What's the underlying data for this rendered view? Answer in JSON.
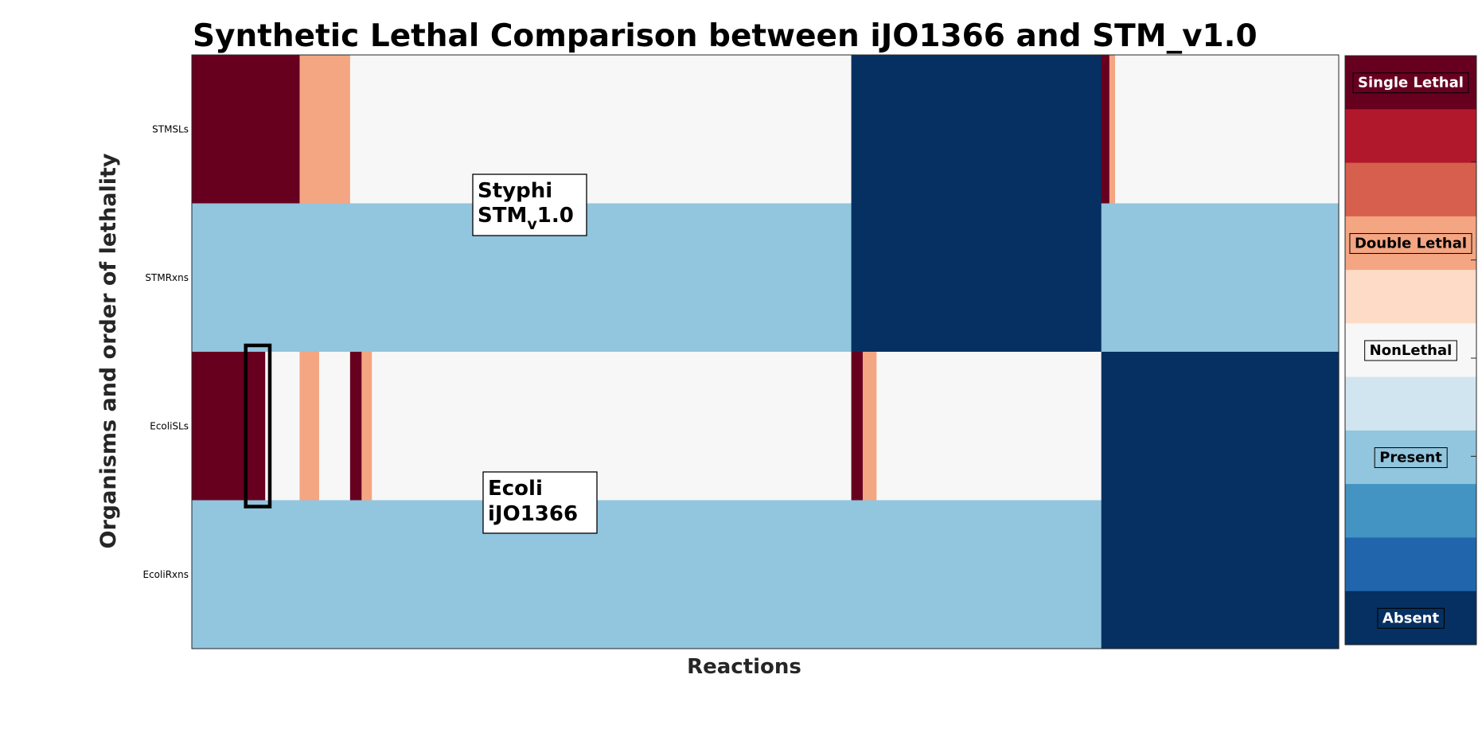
{
  "chart_data": {
    "type": "heatmap",
    "title": "Synthetic Lethal Comparison between iJO1366 and STM_v1.0",
    "xlabel": "Reactions",
    "ylabel": "Organisms and order of lethality",
    "rows": [
      "STMSLs",
      "STMRxns",
      "EcoliSLs",
      "EcoliRxns"
    ],
    "x_range": [
      0,
      1000
    ],
    "segments": {
      "STMSLs": [
        {
          "from": 0,
          "to": 94,
          "level": 0
        },
        {
          "from": 94,
          "to": 138,
          "level": 3
        },
        {
          "from": 138,
          "to": 575,
          "level": 5
        },
        {
          "from": 575,
          "to": 793,
          "level": 10
        },
        {
          "from": 793,
          "to": 800,
          "level": 0
        },
        {
          "from": 800,
          "to": 805,
          "level": 3
        },
        {
          "from": 805,
          "to": 1000,
          "level": 5
        }
      ],
      "STMRxns": [
        {
          "from": 0,
          "to": 575,
          "level": 7
        },
        {
          "from": 575,
          "to": 793,
          "level": 10
        },
        {
          "from": 793,
          "to": 1000,
          "level": 7
        }
      ],
      "EcoliSLs": [
        {
          "from": 0,
          "to": 64,
          "level": 0
        },
        {
          "from": 64,
          "to": 94,
          "level": 5
        },
        {
          "from": 94,
          "to": 111,
          "level": 3
        },
        {
          "from": 111,
          "to": 138,
          "level": 5
        },
        {
          "from": 138,
          "to": 148,
          "level": 0
        },
        {
          "from": 148,
          "to": 157,
          "level": 3
        },
        {
          "from": 157,
          "to": 575,
          "level": 5
        },
        {
          "from": 575,
          "to": 585,
          "level": 0
        },
        {
          "from": 585,
          "to": 597,
          "level": 3
        },
        {
          "from": 597,
          "to": 793,
          "level": 5
        },
        {
          "from": 793,
          "to": 1000,
          "level": 10
        }
      ],
      "EcoliRxns": [
        {
          "from": 0,
          "to": 793,
          "level": 7
        },
        {
          "from": 793,
          "to": 1000,
          "level": 10
        }
      ]
    },
    "colormap": [
      "#67001f",
      "#b2182b",
      "#d6604d",
      "#f4a582",
      "#fddbc7",
      "#f7f7f7",
      "#d1e5f0",
      "#92c5de",
      "#4393c3",
      "#2166ac",
      "#053061"
    ],
    "colorbar_labels": [
      {
        "text": "Single Lethal",
        "level": 0
      },
      {
        "text": "Double Lethal",
        "level": 3
      },
      {
        "text": "NonLethal",
        "level": 5
      },
      {
        "text": "Present",
        "level": 7
      },
      {
        "text": "Absent",
        "level": 10
      }
    ],
    "annotations": [
      {
        "line1": "Styphi",
        "line2_main": "STM",
        "line2_sub": "v",
        "line2_rest": "1.0"
      },
      {
        "line1": "Ecoli",
        "line2_main": "iJO1366",
        "line2_sub": "",
        "line2_rest": ""
      }
    ],
    "highlight": {
      "from": 47,
      "to": 68,
      "row_from": 2,
      "row_to": 3
    },
    "grid": false,
    "legend": "right"
  }
}
